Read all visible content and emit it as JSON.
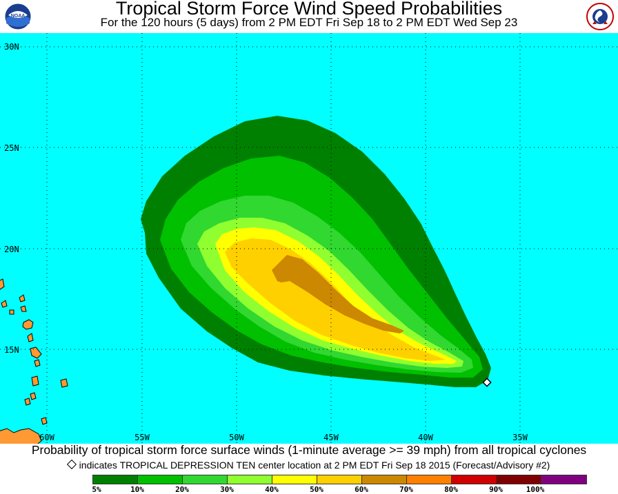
{
  "title": "Tropical Storm Force Wind Speed Probabilities",
  "subtitle": "For the 120 hours (5 days) from 2 PM EDT Fri Sep 18 to 2 PM EDT Wed Sep 23",
  "logos": {
    "left": {
      "icon": "noaa-logo-icon",
      "text": "NOAA"
    },
    "right": {
      "icon": "national-weather-service-logo-icon",
      "text": "NATIONAL WEATHER SERVICE"
    }
  },
  "map": {
    "ocean_color": "#00ffff",
    "land_color": "#ff9933",
    "lat_labels": [
      "30N",
      "25N",
      "20N",
      "15N"
    ],
    "lon_labels": [
      "60W",
      "55W",
      "50W",
      "45W",
      "40W",
      "35W"
    ],
    "storm_center": {
      "label": "TROPICAL DEPRESSION TEN",
      "lat": 13.8,
      "lon": 36.4
    }
  },
  "caption_line1": "Probability of tropical storm force surface winds (1-minute average >= 39 mph) from all tropical cyclones",
  "caption_line2": "indicates TROPICAL DEPRESSION TEN center location at 2 PM EDT Fri Sep 18 2015 (Forecast/Advisory #2)",
  "legend": {
    "colors": [
      "#008000",
      "#00c000",
      "#30d830",
      "#90ff30",
      "#ffff00",
      "#ffd000",
      "#cc8800",
      "#ff8000",
      "#d00000",
      "#800000",
      "#800080"
    ],
    "labels": [
      "5%",
      "10%",
      "20%",
      "30%",
      "40%",
      "50%",
      "60%",
      "70%",
      "80%",
      "90%",
      "100%"
    ]
  }
}
